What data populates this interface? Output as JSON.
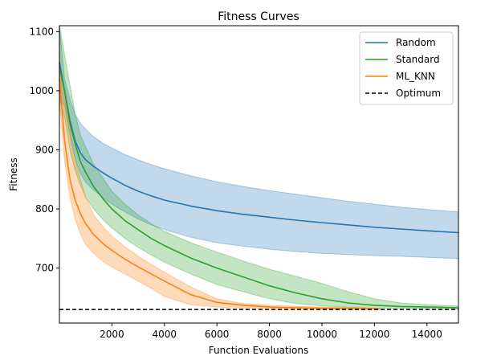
{
  "chart_data": {
    "type": "line",
    "title": "Fitness Curves",
    "xlabel": "Function Evaluations",
    "ylabel": "Fitness",
    "xlim": [
      0,
      15200
    ],
    "ylim": [
      607,
      1110
    ],
    "xticks": [
      2000,
      4000,
      6000,
      8000,
      10000,
      12000,
      14000
    ],
    "yticks": [
      700,
      800,
      900,
      1000,
      1100
    ],
    "grid": false,
    "legend_position": "top-right",
    "legend": [
      "Random",
      "Standard",
      "ML_KNN",
      "Optimum"
    ],
    "series": [
      {
        "name": "Random",
        "color": "#1f77b4",
        "x": [
          0,
          200,
          400,
          600,
          800,
          1000,
          1300,
          1700,
          2000,
          2500,
          3000,
          3500,
          4000,
          5000,
          6000,
          7000,
          8000,
          9000,
          10000,
          11000,
          12000,
          13000,
          14000,
          15200
        ],
        "mean": [
          1048,
          1000,
          950,
          915,
          895,
          883,
          872,
          860,
          852,
          840,
          830,
          822,
          815,
          805,
          797,
          791,
          786,
          781,
          777,
          773,
          769,
          766,
          763,
          760
        ],
        "upper": [
          1110,
          1020,
          985,
          960,
          945,
          935,
          922,
          910,
          903,
          892,
          883,
          875,
          868,
          856,
          846,
          838,
          831,
          825,
          819,
          813,
          808,
          803,
          799,
          795
        ],
        "lower": [
          985,
          975,
          925,
          885,
          860,
          845,
          832,
          818,
          808,
          795,
          783,
          773,
          765,
          752,
          743,
          737,
          732,
          728,
          725,
          723,
          721,
          720,
          718,
          716
        ]
      },
      {
        "name": "Standard",
        "color": "#2ca02c",
        "x": [
          0,
          200,
          400,
          600,
          800,
          1000,
          1300,
          1700,
          2000,
          2500,
          3000,
          3500,
          4000,
          5000,
          6000,
          7000,
          8000,
          9000,
          10000,
          11000,
          12000,
          13000,
          14000,
          15200
        ],
        "mean": [
          1040,
          1000,
          945,
          910,
          880,
          862,
          838,
          815,
          800,
          780,
          765,
          750,
          738,
          717,
          700,
          685,
          670,
          658,
          648,
          641,
          637,
          635,
          634,
          633
        ],
        "upper": [
          1110,
          1060,
          1010,
          960,
          925,
          905,
          876,
          850,
          830,
          808,
          790,
          775,
          762,
          743,
          727,
          712,
          698,
          686,
          674,
          660,
          648,
          641,
          638,
          636
        ],
        "lower": [
          985,
          955,
          900,
          865,
          840,
          820,
          800,
          780,
          768,
          750,
          735,
          722,
          710,
          690,
          672,
          660,
          648,
          640,
          636,
          634,
          632,
          632,
          631,
          631
        ]
      },
      {
        "name": "ML_KNN",
        "color": "#ff7f0e",
        "x": [
          0,
          200,
          400,
          600,
          800,
          1000,
          1300,
          1700,
          2000,
          2500,
          3000,
          3500,
          4000,
          5000,
          6000,
          7000,
          8000,
          9000,
          10000,
          11000,
          12200
        ],
        "mean": [
          1020,
          915,
          850,
          815,
          792,
          775,
          757,
          740,
          730,
          715,
          702,
          690,
          678,
          655,
          642,
          637,
          634,
          633,
          632,
          632,
          631
        ],
        "upper": [
          1060,
          990,
          935,
          885,
          850,
          820,
          790,
          768,
          754,
          736,
          720,
          706,
          693,
          668,
          648,
          640,
          637,
          635,
          634,
          633,
          632
        ],
        "lower": [
          985,
          880,
          820,
          783,
          758,
          740,
          725,
          710,
          702,
          690,
          678,
          666,
          652,
          638,
          634,
          632,
          631,
          630,
          630,
          630,
          630
        ]
      }
    ],
    "reference_lines": [
      {
        "name": "Optimum",
        "y": 630,
        "style": "dashed",
        "color": "#000000"
      }
    ]
  }
}
